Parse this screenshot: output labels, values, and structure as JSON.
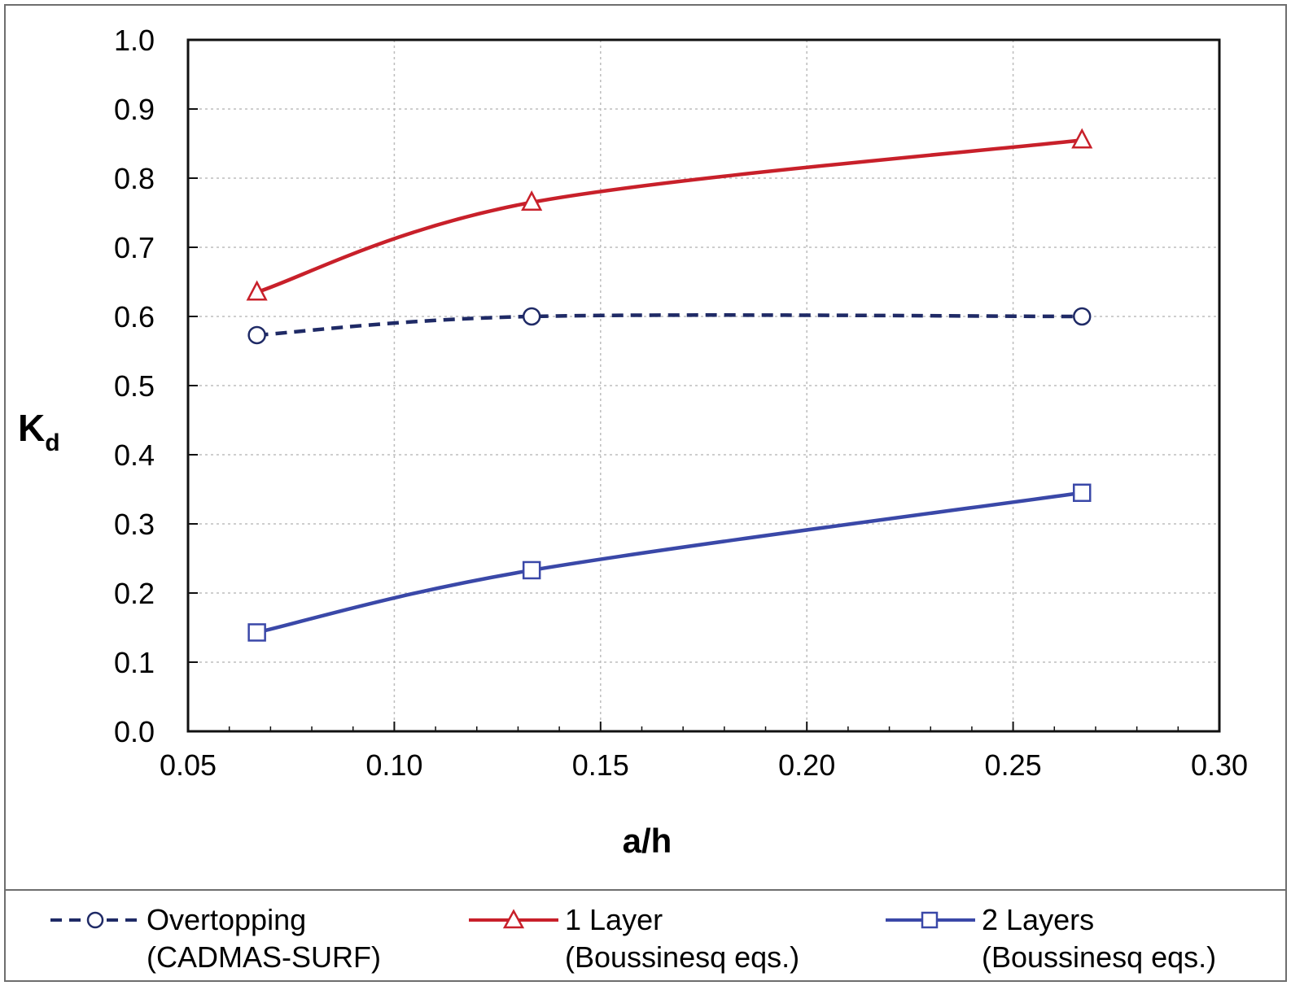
{
  "chart_data": {
    "type": "line",
    "xlabel": "a/h",
    "ylabel": {
      "main": "K",
      "sub": "d"
    },
    "xlim": [
      0.05,
      0.3
    ],
    "ylim": [
      0.0,
      1.0
    ],
    "x_ticks": [
      "0.05",
      "0.10",
      "0.15",
      "0.20",
      "0.25",
      "0.30"
    ],
    "y_ticks": [
      "0.0",
      "0.1",
      "0.2",
      "0.3",
      "0.4",
      "0.5",
      "0.6",
      "0.7",
      "0.8",
      "0.9",
      "1.0"
    ],
    "grid": true,
    "legend_placement": "bottom",
    "series": [
      {
        "name": "Overtopping",
        "name_line2": "(CADMAS-SURF)",
        "x": [
          0.0667,
          0.1333,
          0.2667
        ],
        "values": [
          0.573,
          0.6,
          0.6
        ],
        "color": "#1f2a66",
        "dash": "dashed",
        "marker": "circle"
      },
      {
        "name": "1 Layer",
        "name_line2": "(Boussinesq eqs.)",
        "x": [
          0.0667,
          0.1333,
          0.2667
        ],
        "values": [
          0.635,
          0.765,
          0.855
        ],
        "color": "#c8202a",
        "dash": "solid",
        "marker": "triangle"
      },
      {
        "name": "2 Layers",
        "name_line2": "(Boussinesq eqs.)",
        "x": [
          0.0667,
          0.1333,
          0.2667
        ],
        "values": [
          0.143,
          0.233,
          0.345
        ],
        "color": "#3a48a8",
        "dash": "solid",
        "marker": "square"
      }
    ]
  }
}
